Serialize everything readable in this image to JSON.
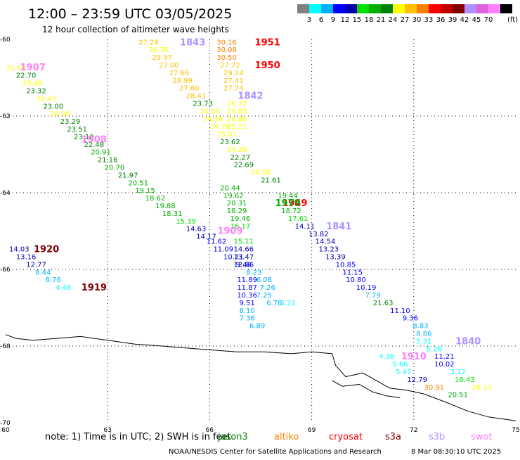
{
  "header": {
    "title": "12:00 – 23:59 UTC 03/05/2025",
    "subtitle": "12 hour collection of altimeter wave heights"
  },
  "colorbar": {
    "unit_label": "(ft)",
    "ticks": [
      "3",
      "6",
      "9",
      "12",
      "15",
      "18",
      "21",
      "24",
      "27",
      "30",
      "33",
      "36",
      "39",
      "42",
      "45",
      "70"
    ],
    "colors": [
      "#808080",
      "#00ffff",
      "#00b0ff",
      "#0000ff",
      "#0000b0",
      "#00e000",
      "#00b000",
      "#008000",
      "#ffff00",
      "#ffc000",
      "#ff8000",
      "#ff0000",
      "#c00000",
      "#800000",
      "#b090ff",
      "#e060e0",
      "#ff80ff",
      "#000000"
    ]
  },
  "footer": {
    "note_prefix": "note:  1) Time is in UTC;  2) SWH is in feet",
    "satellites": [
      {
        "name": "jason3",
        "color": "#008000"
      },
      {
        "name": "altiko",
        "color": "#ff8000"
      },
      {
        "name": "cryosat",
        "color": "#ff0000"
      },
      {
        "name": "s3a",
        "color": "#800000"
      },
      {
        "name": "s3b",
        "color": "#b090ff"
      },
      {
        "name": "swot",
        "color": "#ff80ff"
      }
    ],
    "credit": "NOAA/NESDIS Center for Satellite Applications and Research",
    "timestamp": "8 Mar 08:30:10 UTC 2025"
  },
  "chart_data": {
    "type": "scatter",
    "title": "12:00 – 23:59 UTC 03/05/2025",
    "subtitle": "12 hour collection of altimeter wave heights",
    "x_ticks": [
      60,
      63,
      66,
      69,
      72,
      75
    ],
    "y_ticks": [
      -60,
      -62,
      -64,
      -66,
      -68,
      -70
    ],
    "xlim": [
      60,
      75
    ],
    "ylim": [
      -70,
      -60
    ],
    "grid": true,
    "swh_unit": "ft",
    "coastline": [
      [
        60,
        -67.7
      ],
      [
        60.3,
        -67.8
      ],
      [
        60.8,
        -67.85
      ],
      [
        61.5,
        -67.8
      ],
      [
        62.2,
        -67.75
      ],
      [
        63.0,
        -67.85
      ],
      [
        63.8,
        -67.95
      ],
      [
        64.6,
        -68.0
      ],
      [
        65.3,
        -68.05
      ],
      [
        66.0,
        -68.1
      ],
      [
        66.8,
        -68.15
      ],
      [
        67.6,
        -68.15
      ],
      [
        68.4,
        -68.2
      ],
      [
        69.0,
        -68.15
      ],
      [
        69.6,
        -68.2
      ],
      [
        69.7,
        -68.5
      ],
      [
        70.0,
        -68.8
      ],
      [
        70.5,
        -68.7
      ],
      [
        71.0,
        -68.95
      ],
      [
        71.3,
        -69.1
      ],
      [
        71.8,
        -69.15
      ],
      [
        72.3,
        -69.25
      ],
      [
        72.9,
        -69.45
      ],
      [
        73.6,
        -69.7
      ],
      [
        74.2,
        -69.85
      ],
      [
        75.0,
        -69.95
      ]
    ],
    "coast_inland": [
      [
        69.6,
        -68.9
      ],
      [
        69.9,
        -69.05
      ],
      [
        70.4,
        -69.0
      ],
      [
        70.8,
        -69.2
      ],
      [
        71.2,
        -69.3
      ],
      [
        71.6,
        -69.35
      ]
    ],
    "passes": [
      {
        "id": "1907",
        "color": "#ff80ff",
        "label_at": [
          60.8,
          -60.72
        ],
        "points": [
          {
            "lon": 60.3,
            "lat": -60.73,
            "v": 25.88
          },
          {
            "lon": 60.6,
            "lat": -60.93,
            "v": 22.7
          },
          {
            "lon": 60.8,
            "lat": -61.13,
            "v": 25.68
          },
          {
            "lon": 60.9,
            "lat": -61.33,
            "v": 23.32
          },
          {
            "lon": 61.2,
            "lat": -61.53,
            "v": 26.43
          },
          {
            "lon": 61.4,
            "lat": -61.73,
            "v": 23.0
          },
          {
            "lon": 61.6,
            "lat": -61.93,
            "v": 24.06
          },
          {
            "lon": 61.9,
            "lat": -62.13,
            "v": 23.29
          },
          {
            "lon": 62.1,
            "lat": -62.33,
            "v": 23.51
          },
          {
            "lon": 62.3,
            "lat": -62.53,
            "v": 23.1
          },
          {
            "lon": 62.6,
            "lat": -62.73,
            "v": 22.48
          },
          {
            "lon": 62.8,
            "lat": -62.93,
            "v": 20.91
          },
          {
            "lon": 63.0,
            "lat": -63.13,
            "v": 21.16
          },
          {
            "lon": 63.2,
            "lat": -63.33,
            "v": 20.7
          },
          {
            "lon": 63.6,
            "lat": -63.53,
            "v": 21.97
          },
          {
            "lon": 63.9,
            "lat": -63.73,
            "v": 20.51
          },
          {
            "lon": 64.1,
            "lat": -63.93,
            "v": 19.15
          },
          {
            "lon": 64.4,
            "lat": -64.13,
            "v": 18.62
          },
          {
            "lon": 64.7,
            "lat": -64.33,
            "v": 19.88
          },
          {
            "lon": 64.9,
            "lat": -64.53,
            "v": 18.31
          },
          {
            "lon": 65.3,
            "lat": -64.73,
            "v": 15.39
          },
          {
            "lon": 65.6,
            "lat": -64.93,
            "v": 14.63
          },
          {
            "lon": 65.9,
            "lat": -65.13,
            "v": 14.17
          }
        ]
      },
      {
        "id": "1908",
        "color": "#ff80ff",
        "label_at": [
          62.6,
          -62.6
        ],
        "points": []
      },
      {
        "id": "1909",
        "color": "#ff80ff",
        "label_at": [
          66.6,
          -64.98
        ],
        "points": []
      },
      {
        "id": "1843",
        "color": "#b090ff",
        "label_at": [
          65.5,
          -60.06
        ],
        "points": [
          {
            "lon": 64.2,
            "lat": -60.06,
            "v": 27.29
          },
          {
            "lon": 64.5,
            "lat": -60.26,
            "v": 26.35
          },
          {
            "lon": 64.6,
            "lat": -60.46,
            "v": 29.97
          },
          {
            "lon": 64.8,
            "lat": -60.66,
            "v": 27.0
          },
          {
            "lon": 65.1,
            "lat": -60.86,
            "v": 27.66
          },
          {
            "lon": 65.2,
            "lat": -61.06,
            "v": 28.99
          },
          {
            "lon": 65.4,
            "lat": -61.26,
            "v": 27.6
          },
          {
            "lon": 65.6,
            "lat": -61.46,
            "v": 28.41
          },
          {
            "lon": 65.8,
            "lat": -61.66,
            "v": 23.73
          },
          {
            "lon": 66.0,
            "lat": -61.86,
            "v": 24.68
          },
          {
            "lon": 66.1,
            "lat": -62.06,
            "v": 24.36
          },
          {
            "lon": 66.3,
            "lat": -62.26,
            "v": 24.76
          },
          {
            "lon": 66.5,
            "lat": -62.46,
            "v": 25.01
          },
          {
            "lon": 66.6,
            "lat": -62.66,
            "v": 23.62
          },
          {
            "lon": 66.8,
            "lat": -62.86,
            "v": 24.29
          },
          {
            "lon": 66.9,
            "lat": -63.06,
            "v": 22.27
          },
          {
            "lon": 67.0,
            "lat": -63.26,
            "v": 22.69
          }
        ]
      },
      {
        "id": "1951",
        "color": "#ff0000",
        "label_at": [
          67.7,
          -60.06
        ],
        "points": [
          {
            "lon": 66.5,
            "lat": -60.06,
            "v": 30.16
          },
          {
            "lon": 66.5,
            "lat": -60.26,
            "v": 30.08
          },
          {
            "lon": 66.5,
            "lat": -60.46,
            "v": 30.5
          },
          {
            "lon": 66.6,
            "lat": -60.66,
            "v": 27.72
          },
          {
            "lon": 66.7,
            "lat": -60.86,
            "v": 29.24
          },
          {
            "lon": 66.7,
            "lat": -61.06,
            "v": 27.41
          },
          {
            "lon": 66.7,
            "lat": -61.26,
            "v": 27.74
          },
          {
            "lon": 66.8,
            "lat": -61.66,
            "v": 26.72
          },
          {
            "lon": 66.8,
            "lat": -61.86,
            "v": 26.83
          },
          {
            "lon": 66.8,
            "lat": -62.06,
            "v": 26.86
          },
          {
            "lon": 66.8,
            "lat": -62.26,
            "v": 25.21
          }
        ]
      },
      {
        "id": "1950",
        "color": "#ff0000",
        "label_at": [
          67.7,
          -60.66
        ],
        "points": []
      },
      {
        "id": "1842",
        "color": "#b090ff",
        "label_at": [
          67.2,
          -61.46
        ],
        "points": []
      },
      {
        "id": "1949",
        "color": "#ff0000",
        "label_at": [
          68.5,
          -64.26
        ],
        "points": [
          {
            "lon": 67.5,
            "lat": -63.46,
            "v": 24.58
          },
          {
            "lon": 67.8,
            "lat": -63.66,
            "v": 21.61
          },
          {
            "lon": 68.3,
            "lat": -64.06,
            "v": 19.44
          },
          {
            "lon": 68.4,
            "lat": -64.46,
            "v": 18.72
          },
          {
            "lon": 68.6,
            "lat": -64.66,
            "v": 17.61
          }
        ]
      },
      {
        "id": "1979",
        "color": "#00b000",
        "label_at": [
          68.3,
          -64.26
        ],
        "points": [
          {
            "lon": 66.6,
            "lat": -63.86,
            "v": 20.44
          },
          {
            "lon": 66.7,
            "lat": -64.06,
            "v": 19.62
          },
          {
            "lon": 66.8,
            "lat": -64.26,
            "v": 20.31
          },
          {
            "lon": 66.8,
            "lat": -64.46,
            "v": 18.29
          },
          {
            "lon": 66.9,
            "lat": -64.66,
            "v": 19.46
          },
          {
            "lon": 66.9,
            "lat": -64.86,
            "v": 16.17
          },
          {
            "lon": 67.0,
            "lat": -65.26,
            "v": 15.11
          },
          {
            "lon": 67.0,
            "lat": -65.46,
            "v": 14.66
          },
          {
            "lon": 67.0,
            "lat": -65.66,
            "v": 13.47
          },
          {
            "lon": 67.0,
            "lat": -65.86,
            "v": 12.86
          },
          {
            "lon": 67.1,
            "lat": -66.26,
            "v": 11.89
          },
          {
            "lon": 67.1,
            "lat": -66.46,
            "v": 11.87
          },
          {
            "lon": 67.1,
            "lat": -66.66,
            "v": 10.36
          },
          {
            "lon": 67.1,
            "lat": -66.86,
            "v": 9.51
          },
          {
            "lon": 67.1,
            "lat": -67.06,
            "v": 8.1
          },
          {
            "lon": 67.1,
            "lat": -67.26,
            "v": 7.36
          },
          {
            "lon": 67.4,
            "lat": -67.46,
            "v": 6.89
          }
        ]
      },
      {
        "id": "1841",
        "color": "#b090ff",
        "label_at": [
          69.8,
          -64.86
        ],
        "points": [
          {
            "lon": 68.8,
            "lat": -64.86,
            "v": 14.11
          },
          {
            "lon": 69.2,
            "lat": -65.06,
            "v": 13.82
          },
          {
            "lon": 69.4,
            "lat": -65.26,
            "v": 14.54
          },
          {
            "lon": 69.5,
            "lat": -65.46,
            "v": 13.23
          },
          {
            "lon": 69.7,
            "lat": -65.66,
            "v": 13.39
          },
          {
            "lon": 70.0,
            "lat": -65.86,
            "v": 10.85
          },
          {
            "lon": 70.2,
            "lat": -66.06,
            "v": 11.15
          },
          {
            "lon": 70.3,
            "lat": -66.26,
            "v": 10.8
          },
          {
            "lon": 70.6,
            "lat": -66.46,
            "v": 10.19
          },
          {
            "lon": 70.8,
            "lat": -66.66,
            "v": 7.79
          },
          {
            "lon": 71.1,
            "lat": -66.86,
            "v": 21.63
          },
          {
            "lon": 71.6,
            "lat": -67.06,
            "v": 11.1
          },
          {
            "lon": 71.9,
            "lat": -67.26,
            "v": 9.36
          },
          {
            "lon": 72.2,
            "lat": -67.46,
            "v": 8.83
          },
          {
            "lon": 72.3,
            "lat": -67.66,
            "v": 8.86
          },
          {
            "lon": 72.3,
            "lat": -67.86,
            "v": 5.31
          }
        ]
      },
      {
        "id": "1840",
        "color": "#b090ff",
        "label_at": [
          73.6,
          -67.86
        ],
        "points": [
          {
            "lon": 72.6,
            "lat": -68.06,
            "v": 5.26
          },
          {
            "lon": 72.9,
            "lat": -68.26,
            "v": 11.21
          },
          {
            "lon": 72.9,
            "lat": -68.46,
            "v": 10.02
          },
          {
            "lon": 73.3,
            "lat": -68.66,
            "v": 3.12
          },
          {
            "lon": 73.5,
            "lat": -68.86,
            "v": 16.43
          },
          {
            "lon": 74.0,
            "lat": -69.06,
            "v": 26.14
          }
        ]
      },
      {
        "id": "1920",
        "color": "#800000",
        "label_at": [
          61.2,
          -65.46
        ],
        "points": [
          {
            "lon": 60.4,
            "lat": -65.46,
            "v": 14.03
          },
          {
            "lon": 60.6,
            "lat": -65.66,
            "v": 13.16
          },
          {
            "lon": 60.9,
            "lat": -65.86,
            "v": 12.77
          },
          {
            "lon": 61.1,
            "lat": -66.06,
            "v": 8.44
          },
          {
            "lon": 61.4,
            "lat": -66.26,
            "v": 6.76
          },
          {
            "lon": 61.7,
            "lat": -66.46,
            "v": 4.48
          }
        ]
      },
      {
        "id": "1919",
        "color": "#800000",
        "label_at": [
          62.6,
          -66.46
        ],
        "points": []
      },
      {
        "id": "1839",
        "color": "#b090ff",
        "label_at": [
          0,
          0
        ],
        "points": [
          {
            "lon": 66.2,
            "lat": -65.26,
            "v": 11.62
          },
          {
            "lon": 66.4,
            "lat": -65.46,
            "v": 11.09
          },
          {
            "lon": 66.7,
            "lat": -65.66,
            "v": 10.21
          },
          {
            "lon": 67.0,
            "lat": -65.86,
            "v": 9.48
          },
          {
            "lon": 67.3,
            "lat": -66.06,
            "v": 8.23
          },
          {
            "lon": 67.6,
            "lat": -66.26,
            "v": 6.08
          },
          {
            "lon": 67.7,
            "lat": -66.46,
            "v": 7.26
          },
          {
            "lon": 67.6,
            "lat": -66.66,
            "v": 7.25
          },
          {
            "lon": 67.9,
            "lat": -66.86,
            "v": 6.78
          },
          {
            "lon": 68.3,
            "lat": -66.86,
            "v": 5.21
          }
        ]
      },
      {
        "id": "1910",
        "color": "#ff80ff",
        "label_at": [
          72.0,
          -68.26
        ],
        "points": [
          {
            "lon": 71.2,
            "lat": -68.26,
            "v": 4.38
          },
          {
            "lon": 71.6,
            "lat": -68.46,
            "v": 5.66
          },
          {
            "lon": 71.7,
            "lat": -68.66,
            "v": 5.47
          },
          {
            "lon": 72.1,
            "lat": -68.86,
            "v": 12.79
          },
          {
            "lon": 72.6,
            "lat": -69.06,
            "v": 30.91
          },
          {
            "lon": 73.3,
            "lat": -69.26,
            "v": 20.51
          }
        ]
      }
    ]
  }
}
